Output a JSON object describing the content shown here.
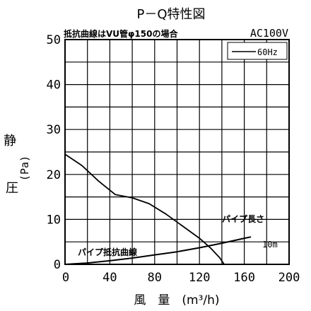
{
  "chart_data": {
    "type": "line",
    "title": "P－Q特性図",
    "subtitle_left": "抵抗曲線はVU管φ150の場合",
    "subtitle_right": "AC100V",
    "xlabel": "風　量　(m³/h)",
    "ylabel_main": "静圧",
    "ylabel_unit": "(Pa)",
    "xlim": [
      0,
      200
    ],
    "ylim": [
      0,
      50
    ],
    "x_ticks": [
      0,
      40,
      80,
      120,
      160,
      200
    ],
    "y_ticks": [
      0,
      10,
      20,
      30,
      40,
      50
    ],
    "grid": true,
    "legend": {
      "label": "60Hz",
      "placement": "top-right"
    },
    "series": [
      {
        "name": "60Hz",
        "points": [
          [
            0,
            24.5
          ],
          [
            15,
            22
          ],
          [
            30,
            18.5
          ],
          [
            45,
            15.5
          ],
          [
            60,
            14.8
          ],
          [
            75,
            13.5
          ],
          [
            90,
            11.2
          ],
          [
            105,
            8.5
          ],
          [
            120,
            5.8
          ],
          [
            130,
            3.6
          ],
          [
            138,
            1.5
          ],
          [
            142,
            0
          ]
        ]
      },
      {
        "name": "パイプ抵抗曲線",
        "points": [
          [
            0,
            0
          ],
          [
            20,
            0.3
          ],
          [
            40,
            0.8
          ],
          [
            60,
            1.4
          ],
          [
            80,
            2.1
          ],
          [
            100,
            2.8
          ],
          [
            120,
            3.7
          ],
          [
            140,
            4.7
          ],
          [
            160,
            5.8
          ],
          [
            166,
            6.1
          ]
        ]
      }
    ],
    "annotations": {
      "pipe_curve_label": "パイプ抵抗曲線",
      "pipe_length_label": "パイプ長さ",
      "pipe_length_value": "10m"
    }
  }
}
